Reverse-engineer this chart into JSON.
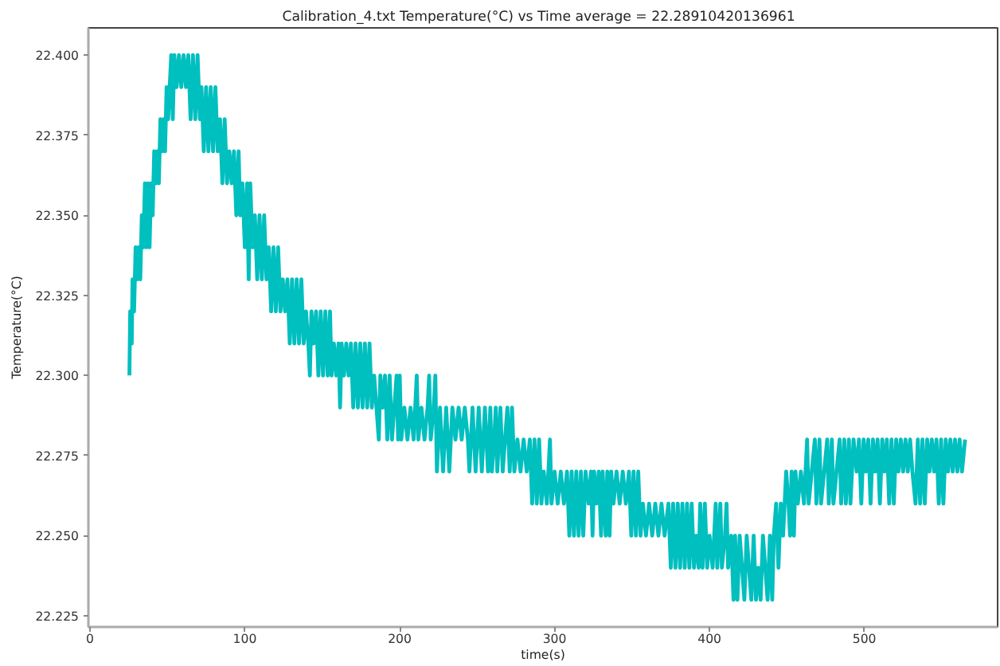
{
  "chart_data": {
    "type": "line",
    "title": "Calibration_4.txt  Temperature(°C) vs Time  average = 22.28910420136961",
    "xlabel": "time(s)",
    "ylabel": "Temperature(°C)",
    "x": [
      25.5,
      26,
      27,
      27.5,
      28.5,
      29.5,
      30.5,
      31.5,
      32.5,
      33.5,
      34.5,
      35.5,
      36.5,
      37.5,
      38.5,
      39.5,
      40.5,
      41.5,
      42.5,
      43.5,
      44.5,
      45.5,
      46.5,
      47.5,
      48.5,
      49.5,
      50.5,
      51.5,
      52.5,
      53.5,
      54.5,
      56,
      57.5,
      59,
      60.5,
      62,
      63.5,
      65,
      66.5,
      68,
      69.5,
      71,
      72,
      73.5,
      75,
      76.5,
      78,
      79.5,
      81,
      82.5,
      84,
      85.5,
      87,
      88.5,
      90,
      91.5,
      93,
      94.5,
      96,
      97,
      98.5,
      100,
      101.5,
      102.5,
      103.5,
      105,
      106.5,
      108,
      109.5,
      111,
      112.5,
      114,
      115.5,
      117,
      118.5,
      120,
      121.5,
      123,
      124.5,
      126,
      127.5,
      129,
      130.5,
      132,
      133.5,
      135,
      136.5,
      138,
      139.5,
      141,
      142,
      143,
      144.5,
      146,
      147.5,
      149,
      150.5,
      152,
      153.5,
      155,
      156,
      157.5,
      159,
      160.5,
      161.5,
      162.5,
      164,
      165.5,
      167,
      168.5,
      170,
      171.5,
      173,
      174.5,
      176,
      177.5,
      179,
      180.5,
      182,
      183.5,
      185,
      186.5,
      187.5,
      189,
      190.5,
      192,
      193.5,
      195,
      196.5,
      198,
      199,
      200,
      201,
      203,
      205,
      207,
      209,
      211,
      212,
      214,
      216,
      218,
      219,
      220,
      222,
      223,
      224,
      226,
      228,
      230,
      232,
      234,
      236,
      238,
      240,
      242,
      244,
      245,
      247,
      249,
      251,
      253,
      255,
      257,
      258.5,
      259.5,
      261,
      262,
      263,
      265,
      266.5,
      268,
      269.5,
      271,
      272.5,
      274,
      276,
      278,
      280,
      282,
      284,
      285.5,
      287,
      288.5,
      290,
      291.5,
      293,
      295,
      297,
      298,
      300,
      302,
      304,
      306,
      308,
      309.5,
      311,
      312.5,
      314,
      315.5,
      317,
      318.5,
      320,
      322,
      323.5,
      324.5,
      325.5,
      327,
      328.5,
      330,
      331,
      333,
      334,
      335.5,
      336.5,
      338,
      340,
      342,
      344,
      346,
      348,
      349.5,
      351,
      352.5,
      354,
      355.5,
      357,
      359,
      361,
      363,
      365,
      367,
      369,
      371,
      373.5,
      375,
      376.5,
      378,
      379.5,
      381,
      382.5,
      384,
      385.5,
      387,
      388.5,
      390,
      391.5,
      393,
      394,
      395.5,
      397,
      398.5,
      400,
      402,
      404,
      405,
      407,
      408,
      410,
      411,
      412,
      414,
      415.5,
      416.5,
      418,
      419.5,
      421,
      422.5,
      424,
      425.5,
      427,
      428.5,
      430,
      431.5,
      433,
      434.5,
      436,
      437.5,
      439,
      440.5,
      441.5,
      443,
      444.5,
      446,
      447.5,
      448.5,
      449.5,
      451,
      452,
      453,
      454.5,
      455.5,
      457,
      459,
      461,
      463,
      464,
      466,
      468,
      469,
      471,
      472,
      474,
      476,
      477,
      479,
      480,
      482,
      484,
      485,
      487,
      488,
      490,
      491,
      493,
      495,
      496.5,
      498,
      499.5,
      501,
      502.5,
      504,
      505.5,
      507,
      508.5,
      510,
      511.5,
      513,
      514.5,
      516,
      517.5,
      519,
      520.5,
      522,
      523.5,
      525,
      526.5,
      528,
      529.5,
      531,
      533,
      534.5,
      536,
      537.5,
      539,
      540.5,
      542,
      543.5,
      545,
      546.5,
      548,
      549.5,
      551,
      552.5,
      554,
      555.5,
      557,
      558.5,
      560,
      561.5,
      563,
      565
    ],
    "series": [
      {
        "color": "#00bfbf",
        "values": [
          22.3,
          22.32,
          22.31,
          22.33,
          22.32,
          22.34,
          22.33,
          22.34,
          22.33,
          22.35,
          22.34,
          22.36,
          22.34,
          22.36,
          22.34,
          22.36,
          22.35,
          22.37,
          22.36,
          22.37,
          22.36,
          22.38,
          22.37,
          22.38,
          22.37,
          22.39,
          22.38,
          22.39,
          22.4,
          22.38,
          22.4,
          22.39,
          22.4,
          22.39,
          22.4,
          22.39,
          22.4,
          22.38,
          22.4,
          22.38,
          22.4,
          22.38,
          22.39,
          22.37,
          22.39,
          22.37,
          22.39,
          22.37,
          22.39,
          22.37,
          22.38,
          22.36,
          22.38,
          22.36,
          22.37,
          22.36,
          22.37,
          22.35,
          22.37,
          22.35,
          22.36,
          22.34,
          22.36,
          22.33,
          22.36,
          22.34,
          22.35,
          22.33,
          22.35,
          22.33,
          22.35,
          22.33,
          22.34,
          22.32,
          22.34,
          22.32,
          22.34,
          22.32,
          22.33,
          22.32,
          22.33,
          22.31,
          22.33,
          22.31,
          22.33,
          22.31,
          22.33,
          22.31,
          22.32,
          22.31,
          22.3,
          22.32,
          22.31,
          22.32,
          22.3,
          22.32,
          22.3,
          22.32,
          22.3,
          22.32,
          22.3,
          22.31,
          22.3,
          22.31,
          22.29,
          22.31,
          22.3,
          22.31,
          22.3,
          22.31,
          22.29,
          22.31,
          22.29,
          22.31,
          22.29,
          22.31,
          22.29,
          22.31,
          22.29,
          22.3,
          22.29,
          22.28,
          22.3,
          22.29,
          22.3,
          22.28,
          22.3,
          22.28,
          22.29,
          22.3,
          22.28,
          22.3,
          22.28,
          22.29,
          22.28,
          22.29,
          22.28,
          22.3,
          22.28,
          22.29,
          22.28,
          22.29,
          22.3,
          22.28,
          22.29,
          22.3,
          22.27,
          22.29,
          22.27,
          22.29,
          22.27,
          22.29,
          22.28,
          22.29,
          22.28,
          22.29,
          22.28,
          22.27,
          22.29,
          22.27,
          22.29,
          22.27,
          22.29,
          22.27,
          22.29,
          22.27,
          22.28,
          22.29,
          22.27,
          22.29,
          22.27,
          22.28,
          22.29,
          22.27,
          22.29,
          22.27,
          22.28,
          22.27,
          22.28,
          22.27,
          22.28,
          22.26,
          22.28,
          22.26,
          22.28,
          22.26,
          22.27,
          22.26,
          22.28,
          22.26,
          22.27,
          22.26,
          22.27,
          22.26,
          22.27,
          22.25,
          22.27,
          22.25,
          22.27,
          22.25,
          22.27,
          22.25,
          22.27,
          22.26,
          22.27,
          22.25,
          22.27,
          22.26,
          22.27,
          22.25,
          22.27,
          22.25,
          22.27,
          22.25,
          22.27,
          22.26,
          22.27,
          22.26,
          22.27,
          22.26,
          22.27,
          22.25,
          22.27,
          22.25,
          22.27,
          22.25,
          22.26,
          22.25,
          22.26,
          22.25,
          22.26,
          22.25,
          22.26,
          22.25,
          22.26,
          22.24,
          22.26,
          22.24,
          22.26,
          22.24,
          22.26,
          22.24,
          22.26,
          22.24,
          22.26,
          22.24,
          22.25,
          22.24,
          22.26,
          22.24,
          22.26,
          22.24,
          22.25,
          22.24,
          22.26,
          22.24,
          22.26,
          22.24,
          22.25,
          22.26,
          22.24,
          22.25,
          22.23,
          22.25,
          22.23,
          22.25,
          22.24,
          22.23,
          22.25,
          22.24,
          22.23,
          22.25,
          22.23,
          22.24,
          22.23,
          22.25,
          22.24,
          22.23,
          22.25,
          22.23,
          22.25,
          22.26,
          22.24,
          22.26,
          22.25,
          22.26,
          22.27,
          22.26,
          22.25,
          22.27,
          22.25,
          22.27,
          22.26,
          22.27,
          22.26,
          22.28,
          22.26,
          22.27,
          22.28,
          22.26,
          22.28,
          22.26,
          22.27,
          22.28,
          22.26,
          22.28,
          22.26,
          22.27,
          22.28,
          22.26,
          22.28,
          22.26,
          22.28,
          22.26,
          22.28,
          22.27,
          22.28,
          22.26,
          22.28,
          22.27,
          22.28,
          22.26,
          22.28,
          22.27,
          22.28,
          22.26,
          22.28,
          22.27,
          22.28,
          22.26,
          22.28,
          22.26,
          22.28,
          22.27,
          22.28,
          22.27,
          22.28,
          22.27,
          22.28,
          22.27,
          22.26,
          22.28,
          22.26,
          22.28,
          22.26,
          22.28,
          22.27,
          22.28,
          22.27,
          22.28,
          22.26,
          22.28,
          22.26,
          22.28,
          22.27,
          22.28,
          22.27,
          22.28,
          22.27,
          22.28,
          22.27,
          22.28
        ]
      }
    ],
    "xlim": [
      -1,
      586
    ],
    "ylim": [
      22.2215,
      22.4085
    ],
    "xticks": [
      0,
      100,
      200,
      300,
      400,
      500
    ],
    "yticks": [
      22.225,
      {
        "value": 22.25,
        "label": "22.250"
      },
      22.275,
      {
        "value": 22.3,
        "label": "22.300"
      },
      22.325,
      {
        "value": 22.35,
        "label": "22.350"
      },
      22.375,
      {
        "value": 22.4,
        "label": "22.400"
      }
    ],
    "grid": false,
    "line_style": "solid"
  }
}
